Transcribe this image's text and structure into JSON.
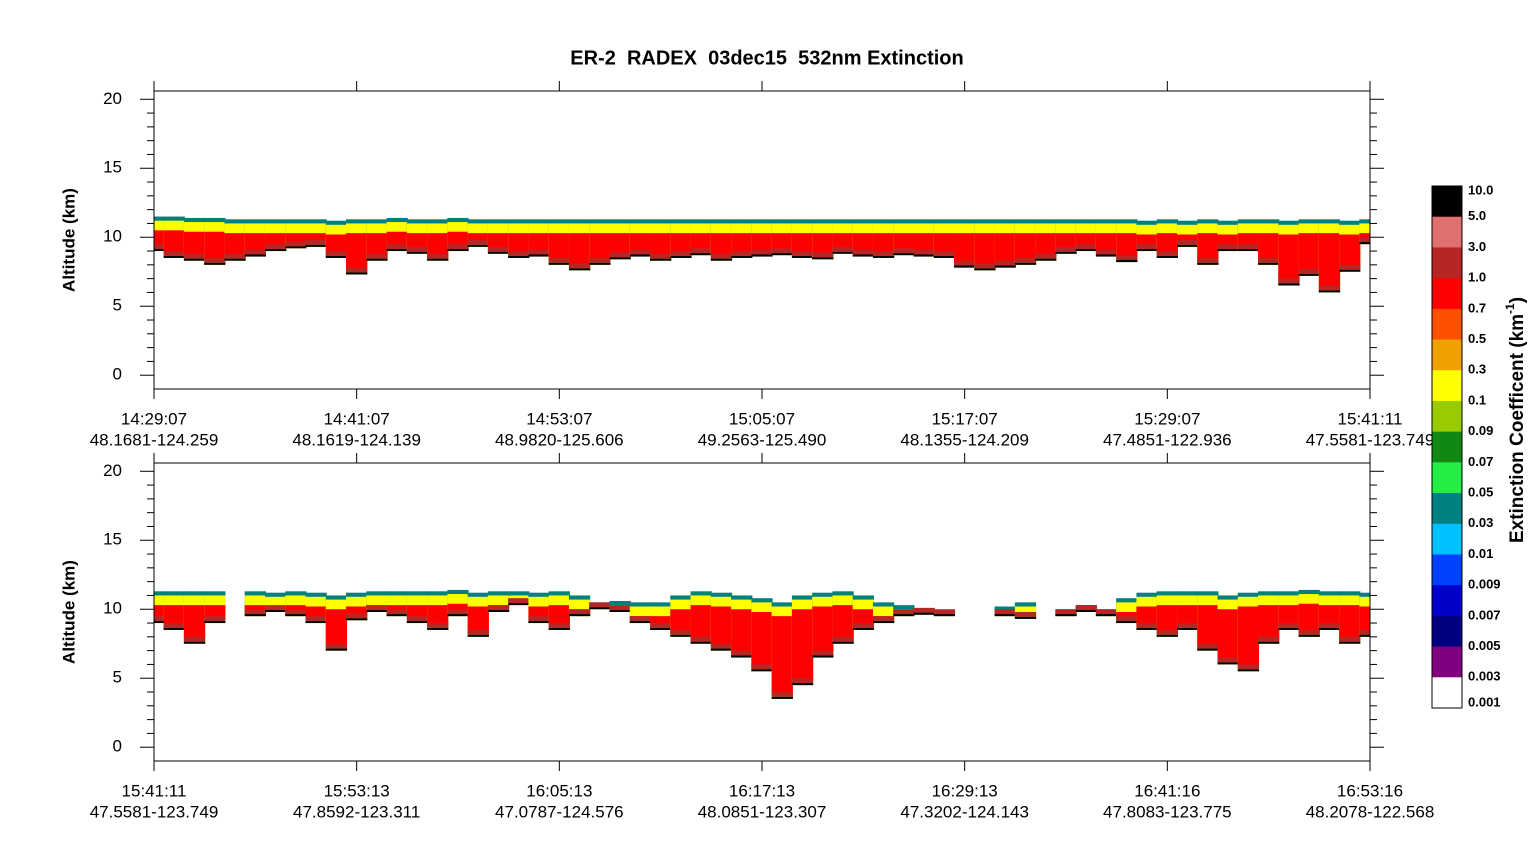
{
  "title": "ER-2  RADEX  03dec15  532nm Extinction",
  "chart_data": [
    {
      "type": "curtain",
      "ylabel": "Altitude (km)",
      "ylim": [
        -1,
        20.6
      ],
      "yticks": [
        0,
        5,
        10,
        15,
        20
      ],
      "xlim": [
        0,
        6
      ],
      "xticks": [
        {
          "value": 0,
          "label": "14:29:07"
        },
        {
          "value": 1,
          "label": "14:41:07"
        },
        {
          "value": 2,
          "label": "14:53:07"
        },
        {
          "value": 3,
          "label": "15:05:07"
        },
        {
          "value": 4,
          "label": "15:17:07"
        },
        {
          "value": 5,
          "label": "15:29:07"
        },
        {
          "value": 6,
          "label": "15:41:11"
        }
      ],
      "xtick_locations": [
        "48.1681-124.259",
        "48.1619-124.139",
        "48.9820-125.606",
        "49.2563-125.490",
        "48.1355-124.209",
        "47.4851-122.936",
        "47.5581-123.749"
      ],
      "x": [
        0,
        0.1,
        0.2,
        0.3,
        0.4,
        0.5,
        0.6,
        0.7,
        0.8,
        0.9,
        1,
        1.1,
        1.2,
        1.3,
        1.4,
        1.5,
        1.6,
        1.7,
        1.8,
        1.9,
        2,
        2.1,
        2.2,
        2.3,
        2.4,
        2.5,
        2.6,
        2.7,
        2.8,
        2.9,
        3,
        3.1,
        3.2,
        3.3,
        3.4,
        3.5,
        3.6,
        3.7,
        3.8,
        3.9,
        4,
        4.1,
        4.2,
        4.3,
        4.4,
        4.5,
        4.6,
        4.7,
        4.8,
        4.9,
        5,
        5.1,
        5.2,
        5.3,
        5.4,
        5.5,
        5.6,
        5.7,
        5.8,
        5.9,
        6
      ],
      "cloud_top": [
        11.5,
        11.5,
        11.4,
        11.4,
        11.3,
        11.3,
        11.3,
        11.3,
        11.3,
        11.2,
        11.3,
        11.3,
        11.4,
        11.3,
        11.3,
        11.4,
        11.3,
        11.3,
        11.3,
        11.3,
        11.3,
        11.3,
        11.3,
        11.3,
        11.3,
        11.3,
        11.3,
        11.3,
        11.3,
        11.3,
        11.3,
        11.3,
        11.3,
        11.3,
        11.3,
        11.3,
        11.3,
        11.3,
        11.3,
        11.3,
        11.3,
        11.3,
        11.3,
        11.3,
        11.3,
        11.3,
        11.3,
        11.3,
        11.3,
        11.2,
        11.3,
        11.2,
        11.3,
        11.2,
        11.3,
        11.3,
        11.2,
        11.3,
        11.3,
        11.2,
        11.3
      ],
      "cloud_base": [
        9.0,
        8.5,
        8.3,
        8.0,
        8.3,
        8.6,
        9.0,
        9.2,
        9.3,
        8.5,
        7.3,
        8.3,
        9.0,
        8.8,
        8.3,
        9.0,
        9.3,
        8.8,
        8.5,
        8.6,
        8.0,
        7.6,
        8.0,
        8.4,
        8.6,
        8.3,
        8.5,
        8.7,
        8.3,
        8.5,
        8.6,
        8.7,
        8.5,
        8.4,
        8.8,
        8.6,
        8.5,
        8.7,
        8.6,
        8.5,
        7.8,
        7.6,
        7.8,
        8.0,
        8.3,
        8.8,
        9.0,
        8.6,
        8.2,
        9.0,
        8.5,
        9.3,
        8.0,
        9.0,
        9.0,
        8.0,
        6.5,
        7.2,
        6.0,
        7.5,
        9.5
      ]
    },
    {
      "type": "curtain",
      "ylabel": "Altitude (km)",
      "ylim": [
        -1,
        20.6
      ],
      "yticks": [
        0,
        5,
        10,
        15,
        20
      ],
      "xlim": [
        0,
        6
      ],
      "xticks": [
        {
          "value": 0,
          "label": "15:41:11"
        },
        {
          "value": 1,
          "label": "15:53:13"
        },
        {
          "value": 2,
          "label": "16:05:13"
        },
        {
          "value": 3,
          "label": "16:17:13"
        },
        {
          "value": 4,
          "label": "16:29:13"
        },
        {
          "value": 5,
          "label": "16:41:16"
        },
        {
          "value": 6,
          "label": "16:53:16"
        }
      ],
      "xtick_locations": [
        "47.5581-123.749",
        "47.8592-123.311",
        "47.0787-124.576",
        "48.0851-123.307",
        "47.3202-124.143",
        "47.8083-123.775",
        "48.2078-122.568"
      ],
      "x": [
        0,
        0.1,
        0.2,
        0.3,
        0.4,
        0.5,
        0.6,
        0.7,
        0.8,
        0.9,
        1,
        1.1,
        1.2,
        1.3,
        1.4,
        1.5,
        1.6,
        1.7,
        1.8,
        1.9,
        2,
        2.1,
        2.2,
        2.3,
        2.4,
        2.5,
        2.6,
        2.7,
        2.8,
        2.9,
        3,
        3.1,
        3.2,
        3.3,
        3.4,
        3.5,
        3.6,
        3.7,
        3.8,
        3.9,
        4,
        4.1,
        4.2,
        4.3,
        4.4,
        4.5,
        4.6,
        4.7,
        4.8,
        4.9,
        5,
        5.1,
        5.2,
        5.3,
        5.4,
        5.5,
        5.6,
        5.7,
        5.8,
        5.9,
        6
      ],
      "cloud_top": [
        11.3,
        11.3,
        11.3,
        11.3,
        null,
        11.3,
        11.2,
        11.3,
        11.2,
        11.0,
        11.2,
        11.3,
        11.3,
        11.3,
        11.3,
        11.4,
        11.2,
        11.3,
        11.3,
        11.2,
        11.3,
        11.0,
        10.5,
        10.6,
        10.5,
        10.5,
        11.0,
        11.3,
        11.2,
        11.0,
        10.8,
        10.5,
        11.0,
        11.2,
        11.3,
        11.0,
        10.5,
        10.3,
        10.0,
        9.9,
        null,
        null,
        10.2,
        10.5,
        null,
        10.0,
        10.3,
        10.0,
        10.8,
        11.2,
        11.3,
        11.3,
        11.3,
        11.0,
        11.2,
        11.3,
        11.3,
        11.4,
        11.3,
        11.3,
        11.2
      ],
      "cloud_base": [
        9.0,
        8.5,
        7.5,
        9.0,
        null,
        9.5,
        9.8,
        9.5,
        9.0,
        7.0,
        9.2,
        9.8,
        9.5,
        9.0,
        8.5,
        9.5,
        8.0,
        9.8,
        10.3,
        9.0,
        8.5,
        9.5,
        10.0,
        9.8,
        9.0,
        8.5,
        8.0,
        7.5,
        7.0,
        6.5,
        5.5,
        3.5,
        4.5,
        6.5,
        7.5,
        8.5,
        9.0,
        9.5,
        9.6,
        9.5,
        null,
        null,
        9.5,
        9.3,
        null,
        9.5,
        9.8,
        9.5,
        9.0,
        8.5,
        8.0,
        8.5,
        7.0,
        6.0,
        5.5,
        7.5,
        8.5,
        8.0,
        8.5,
        7.5,
        8.0
      ]
    }
  ],
  "colorbar": {
    "title": "Extinction Coefficent (km",
    "title_superscript": "-1",
    "title_end": ")",
    "ticks": [
      {
        "value": 10,
        "label": "10.0"
      },
      {
        "value": 5,
        "label": "5.0"
      },
      {
        "value": 3,
        "label": "3.0"
      },
      {
        "value": 1,
        "label": "1.0"
      },
      0.7,
      0.5,
      0.3,
      0.1,
      0.09,
      0.07,
      0.05,
      0.03,
      0.01,
      0.009,
      0.007,
      0.005,
      0.003,
      0.001
    ],
    "colors": [
      "#000000",
      "#e07070",
      "#b82525",
      "#ff0000",
      "#ff5000",
      "#f0a000",
      "#ffff00",
      "#99cc00",
      "#118811",
      "#22ee44",
      "#008080",
      "#00c0ff",
      "#0040ff",
      "#0000c8",
      "#000080",
      "#800080",
      "#ffffff"
    ]
  }
}
